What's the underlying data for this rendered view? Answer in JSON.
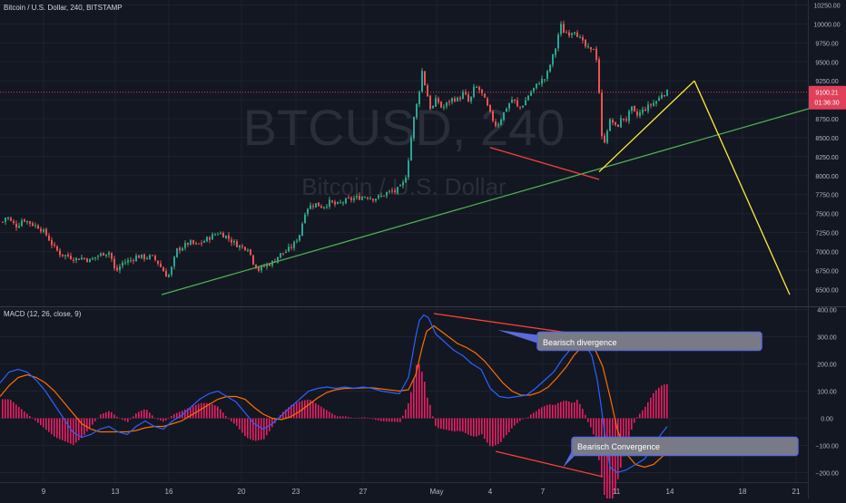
{
  "header": {
    "symbol_title": "Bitcoin / U.S. Dollar, 240, BITSTAMP",
    "macd_title": "MACD (12, 26, close, 9)"
  },
  "watermark": {
    "ticker": "BTCUSD, 240",
    "name": "Bitcoin / U.S. Dollar"
  },
  "price_tag": {
    "price": "9100.21",
    "countdown": "01:36:30",
    "color": "#e0405a"
  },
  "annotations": {
    "divergence": "Bearisch divergence",
    "convergence": "Bearisch Convergence"
  },
  "colors": {
    "up": "#26a69a",
    "down": "#ef5350",
    "up_wick": "#4caf50",
    "macd_line": "#2962ff",
    "signal_line": "#ff6d00",
    "histogram": "#e91e63",
    "trendline_green": "#4caf50",
    "projection_yellow": "#ffeb3b",
    "divergence_red": "#f44336"
  },
  "chart_data": [
    {
      "type": "candlestick",
      "title": "Bitcoin / U.S. Dollar, 240, BITSTAMP",
      "x_tick_labels": [
        "9",
        "13",
        "16",
        "20",
        "23",
        "27",
        "May",
        "4",
        "7",
        "11",
        "14",
        "18",
        "21"
      ],
      "y_tick_labels": [
        "10250.00",
        "10000.00",
        "9750.00",
        "9500.00",
        "9250.00",
        "9000.00",
        "8750.00",
        "8500.00",
        "8250.00",
        "8000.00",
        "7750.00",
        "7500.00",
        "7250.00",
        "7000.00",
        "6750.00",
        "6500.00"
      ],
      "ylim": [
        6300,
        10280
      ],
      "current_price": 9100.21,
      "price_path": [
        [
          0,
          7350
        ],
        [
          6,
          7470
        ],
        [
          12,
          7380
        ],
        [
          18,
          7330
        ],
        [
          24,
          7430
        ],
        [
          30,
          7390
        ],
        [
          36,
          7350
        ],
        [
          42,
          7320
        ],
        [
          50,
          7220
        ],
        [
          58,
          7060
        ],
        [
          66,
          6960
        ],
        [
          74,
          6940
        ],
        [
          82,
          6900
        ],
        [
          90,
          6920
        ],
        [
          98,
          6880
        ],
        [
          106,
          6940
        ],
        [
          114,
          6980
        ],
        [
          120,
          6990
        ],
        [
          126,
          6720
        ],
        [
          134,
          6850
        ],
        [
          142,
          6880
        ],
        [
          150,
          6940
        ],
        [
          158,
          6920
        ],
        [
          166,
          6930
        ],
        [
          172,
          6870
        ],
        [
          178,
          6760
        ],
        [
          184,
          6660
        ],
        [
          188,
          6780
        ],
        [
          194,
          7020
        ],
        [
          200,
          7060
        ],
        [
          208,
          7120
        ],
        [
          216,
          7080
        ],
        [
          224,
          7140
        ],
        [
          232,
          7200
        ],
        [
          240,
          7250
        ],
        [
          248,
          7200
        ],
        [
          256,
          7120
        ],
        [
          264,
          7060
        ],
        [
          272,
          7050
        ],
        [
          278,
          6860
        ],
        [
          284,
          6760
        ],
        [
          292,
          6820
        ],
        [
          300,
          6860
        ],
        [
          306,
          6950
        ],
        [
          314,
          7000
        ],
        [
          322,
          7080
        ],
        [
          330,
          7250
        ],
        [
          334,
          7500
        ],
        [
          338,
          7580
        ],
        [
          346,
          7630
        ],
        [
          354,
          7590
        ],
        [
          362,
          7650
        ],
        [
          370,
          7610
        ],
        [
          378,
          7660
        ],
        [
          386,
          7690
        ],
        [
          394,
          7710
        ],
        [
          402,
          7730
        ],
        [
          410,
          7700
        ],
        [
          418,
          7720
        ],
        [
          426,
          7780
        ],
        [
          434,
          7790
        ],
        [
          442,
          7860
        ],
        [
          446,
          8000
        ],
        [
          450,
          8300
        ],
        [
          454,
          8700
        ],
        [
          460,
          9050
        ],
        [
          464,
          9380
        ],
        [
          468,
          9150
        ],
        [
          474,
          8850
        ],
        [
          480,
          9020
        ],
        [
          486,
          8880
        ],
        [
          492,
          8960
        ],
        [
          498,
          9020
        ],
        [
          504,
          9000
        ],
        [
          510,
          9100
        ],
        [
          516,
          8950
        ],
        [
          522,
          9180
        ],
        [
          528,
          9120
        ],
        [
          534,
          8970
        ],
        [
          540,
          8780
        ],
        [
          546,
          8650
        ],
        [
          552,
          8780
        ],
        [
          558,
          8920
        ],
        [
          564,
          9020
        ],
        [
          570,
          8880
        ],
        [
          576,
          8950
        ],
        [
          582,
          9080
        ],
        [
          588,
          9160
        ],
        [
          594,
          9250
        ],
        [
          600,
          9280
        ],
        [
          606,
          9500
        ],
        [
          612,
          9720
        ],
        [
          616,
          10000
        ],
        [
          620,
          9900
        ],
        [
          626,
          9880
        ],
        [
          632,
          9920
        ],
        [
          638,
          9800
        ],
        [
          644,
          9700
        ],
        [
          650,
          9640
        ],
        [
          654,
          9700
        ],
        [
          658,
          9400
        ],
        [
          660,
          8800
        ],
        [
          663,
          8350
        ],
        [
          667,
          8580
        ],
        [
          672,
          8750
        ],
        [
          678,
          8620
        ],
        [
          684,
          8760
        ],
        [
          690,
          8740
        ],
        [
          694,
          8900
        ],
        [
          700,
          8780
        ],
        [
          706,
          8850
        ],
        [
          712,
          8900
        ],
        [
          718,
          8950
        ],
        [
          724,
          9000
        ],
        [
          728,
          9080
        ],
        [
          734,
          9100
        ]
      ],
      "trendlines": [
        {
          "color": "green",
          "from": [
            178,
            6430
          ],
          "to": [
            893,
            8890
          ]
        },
        {
          "color": "yellow",
          "from": [
            660,
            8050
          ],
          "to": [
            765,
            9250
          ]
        },
        {
          "color": "yellow",
          "from": [
            765,
            9250
          ],
          "to": [
            870,
            6430
          ]
        },
        {
          "color": "red",
          "from": [
            540,
            8370
          ],
          "to": [
            660,
            7950
          ]
        }
      ]
    },
    {
      "type": "line",
      "title": "MACD (12, 26, close, 9)",
      "y_tick_labels": [
        "400.00",
        "300.00",
        "200.00",
        "100.00",
        "0.00",
        "−100.00",
        "−200.00"
      ],
      "ylim": [
        -235,
        405
      ],
      "series": [
        {
          "name": "MACD",
          "points": [
            [
              0,
              130
            ],
            [
              10,
              170
            ],
            [
              20,
              180
            ],
            [
              30,
              170
            ],
            [
              40,
              140
            ],
            [
              50,
              100
            ],
            [
              60,
              50
            ],
            [
              70,
              0
            ],
            [
              80,
              -50
            ],
            [
              90,
              -70
            ],
            [
              100,
              -60
            ],
            [
              110,
              -40
            ],
            [
              120,
              -30
            ],
            [
              130,
              -50
            ],
            [
              140,
              -60
            ],
            [
              150,
              -30
            ],
            [
              160,
              -10
            ],
            [
              170,
              -30
            ],
            [
              180,
              -40
            ],
            [
              190,
              -10
            ],
            [
              200,
              10
            ],
            [
              210,
              40
            ],
            [
              220,
              70
            ],
            [
              230,
              90
            ],
            [
              240,
              100
            ],
            [
              250,
              80
            ],
            [
              260,
              60
            ],
            [
              270,
              20
            ],
            [
              280,
              -20
            ],
            [
              290,
              -40
            ],
            [
              300,
              -20
            ],
            [
              310,
              10
            ],
            [
              320,
              40
            ],
            [
              330,
              70
            ],
            [
              340,
              100
            ],
            [
              350,
              110
            ],
            [
              360,
              115
            ],
            [
              370,
              110
            ],
            [
              380,
              115
            ],
            [
              390,
              110
            ],
            [
              400,
              115
            ],
            [
              410,
              110
            ],
            [
              420,
              100
            ],
            [
              430,
              95
            ],
            [
              440,
              90
            ],
            [
              450,
              150
            ],
            [
              458,
              300
            ],
            [
              462,
              360
            ],
            [
              467,
              380
            ],
            [
              472,
              370
            ],
            [
              480,
              310
            ],
            [
              490,
              280
            ],
            [
              500,
              250
            ],
            [
              510,
              230
            ],
            [
              520,
              200
            ],
            [
              530,
              180
            ],
            [
              540,
              110
            ],
            [
              550,
              80
            ],
            [
              560,
              75
            ],
            [
              570,
              80
            ],
            [
              580,
              85
            ],
            [
              590,
              110
            ],
            [
              600,
              140
            ],
            [
              610,
              170
            ],
            [
              620,
              220
            ],
            [
              630,
              260
            ],
            [
              635,
              290
            ],
            [
              640,
              290
            ],
            [
              645,
              270
            ],
            [
              652,
              230
            ],
            [
              658,
              140
            ],
            [
              662,
              50
            ],
            [
              666,
              -50
            ],
            [
              672,
              -180
            ],
            [
              680,
              -200
            ],
            [
              690,
              -190
            ],
            [
              700,
              -170
            ],
            [
              710,
              -150
            ],
            [
              720,
              -100
            ],
            [
              728,
              -60
            ],
            [
              735,
              -30
            ]
          ]
        },
        {
          "name": "Signal",
          "points": [
            [
              0,
              80
            ],
            [
              10,
              120
            ],
            [
              20,
              150
            ],
            [
              30,
              160
            ],
            [
              40,
              150
            ],
            [
              50,
              130
            ],
            [
              60,
              100
            ],
            [
              70,
              60
            ],
            [
              80,
              20
            ],
            [
              90,
              -20
            ],
            [
              100,
              -40
            ],
            [
              110,
              -50
            ],
            [
              120,
              -50
            ],
            [
              130,
              -50
            ],
            [
              140,
              -50
            ],
            [
              150,
              -45
            ],
            [
              160,
              -35
            ],
            [
              170,
              -30
            ],
            [
              180,
              -30
            ],
            [
              190,
              -20
            ],
            [
              200,
              -10
            ],
            [
              210,
              10
            ],
            [
              220,
              30
            ],
            [
              230,
              50
            ],
            [
              240,
              70
            ],
            [
              250,
              80
            ],
            [
              260,
              80
            ],
            [
              270,
              70
            ],
            [
              280,
              40
            ],
            [
              290,
              15
            ],
            [
              300,
              0
            ],
            [
              310,
              -5
            ],
            [
              320,
              5
            ],
            [
              330,
              25
            ],
            [
              340,
              50
            ],
            [
              350,
              75
            ],
            [
              360,
              95
            ],
            [
              370,
              105
            ],
            [
              380,
              110
            ],
            [
              390,
              110
            ],
            [
              400,
              112
            ],
            [
              410,
              112
            ],
            [
              420,
              108
            ],
            [
              430,
              104
            ],
            [
              440,
              100
            ],
            [
              450,
              105
            ],
            [
              458,
              160
            ],
            [
              465,
              260
            ],
            [
              470,
              320
            ],
            [
              478,
              340
            ],
            [
              486,
              320
            ],
            [
              494,
              300
            ],
            [
              504,
              275
            ],
            [
              514,
              260
            ],
            [
              524,
              240
            ],
            [
              534,
              210
            ],
            [
              544,
              170
            ],
            [
              554,
              130
            ],
            [
              564,
              100
            ],
            [
              574,
              85
            ],
            [
              584,
              85
            ],
            [
              594,
              95
            ],
            [
              604,
              115
            ],
            [
              614,
              150
            ],
            [
              624,
              190
            ],
            [
              632,
              230
            ],
            [
              640,
              260
            ],
            [
              648,
              270
            ],
            [
              656,
              250
            ],
            [
              664,
              190
            ],
            [
              672,
              80
            ],
            [
              680,
              -40
            ],
            [
              690,
              -130
            ],
            [
              700,
              -170
            ],
            [
              710,
              -180
            ],
            [
              720,
              -170
            ],
            [
              730,
              -140
            ],
            [
              735,
              -120
            ]
          ]
        }
      ]
    }
  ]
}
